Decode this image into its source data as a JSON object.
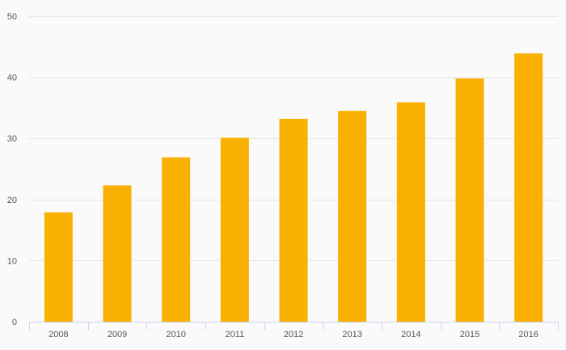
{
  "chart_data": {
    "type": "bar",
    "title": "",
    "xlabel": "",
    "ylabel": "",
    "categories": [
      "2008",
      "2009",
      "2010",
      "2011",
      "2012",
      "2013",
      "2014",
      "2015",
      "2016"
    ],
    "values": [
      17.9,
      22.3,
      26.9,
      30.1,
      33.2,
      34.5,
      35.9,
      39.8,
      43.9
    ],
    "ylim": [
      0,
      50
    ],
    "yticks": [
      0,
      10,
      20,
      30,
      40,
      50
    ],
    "grid": true,
    "legend": "none",
    "colors": {
      "bar": "#f9b000",
      "grid": "#e6e6e6",
      "axis": "#ccd6eb",
      "tick_text": "#555555",
      "background": "#fafafa"
    }
  }
}
